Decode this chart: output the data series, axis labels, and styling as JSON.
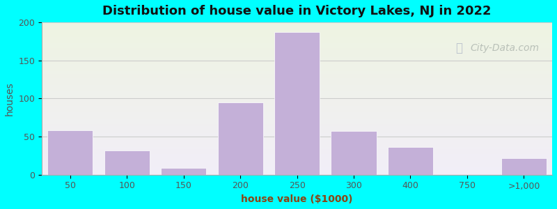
{
  "title": "Distribution of house value in Victory Lakes, NJ in 2022",
  "xlabel": "house value ($1000)",
  "ylabel": "houses",
  "bar_color": "#c4b0d8",
  "bar_edgecolor": "#ffffff",
  "background_color": "#00ffff",
  "plot_bg_top": "#eef4e2",
  "plot_bg_bottom": "#f2eef8",
  "ylim": [
    0,
    200
  ],
  "yticks": [
    0,
    50,
    100,
    150,
    200
  ],
  "bars": [
    {
      "label": "50",
      "value": 58
    },
    {
      "label": "100",
      "value": 32
    },
    {
      "label": "150",
      "value": 9
    },
    {
      "label": "200",
      "value": 95
    },
    {
      "label": "250",
      "value": 187
    },
    {
      "label": "300",
      "value": 57
    },
    {
      "label": "400",
      "value": 36
    },
    {
      "label": "750",
      "value": 0
    },
    {
      "label": ">1,000",
      "value": 22
    }
  ],
  "xtick_labels": [
    "50",
    "100",
    "150",
    "200",
    "250",
    "300",
    "400",
    "750",
    ">1,000"
  ],
  "watermark": "City-Data.com",
  "title_fontsize": 13,
  "axis_label_fontsize": 10,
  "tick_fontsize": 9
}
